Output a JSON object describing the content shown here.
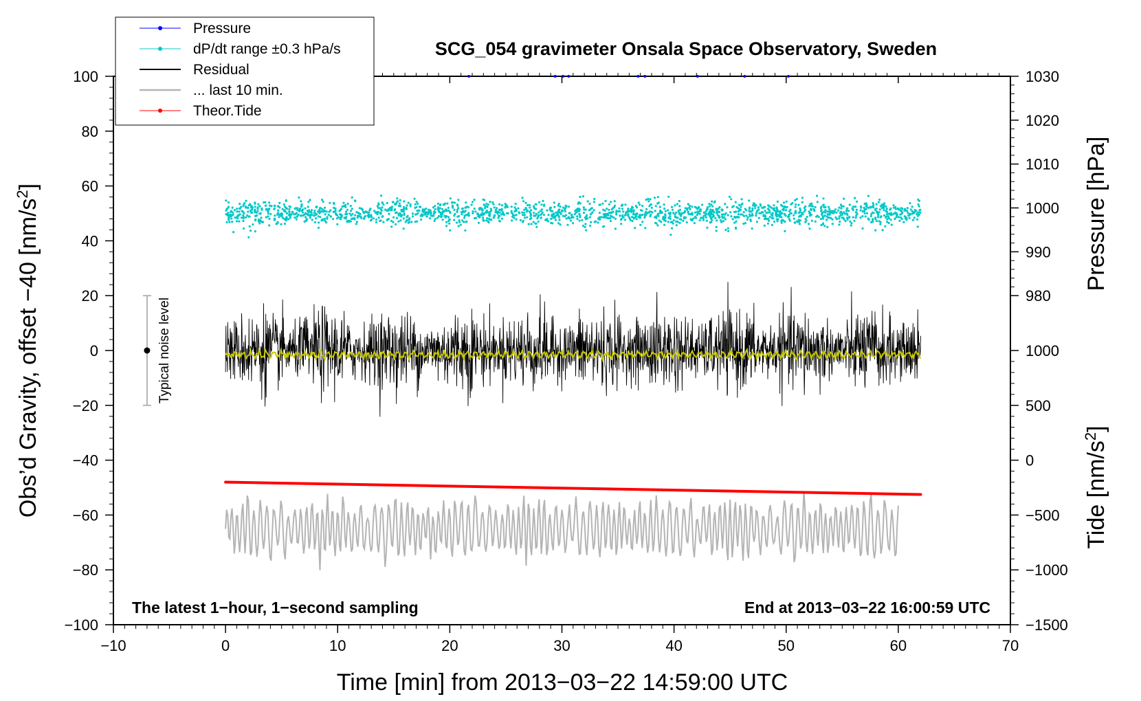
{
  "chart_data": {
    "type": "line",
    "title": "SCG_054 gravimeter Onsala Space Observatory, Sweden",
    "xlabel": "Time [min] from 2013−03−22 14:59:00 UTC",
    "ylabel_left_main": "Obs’d Gravity, offset −40 [nm/s",
    "ylabel_left_sup": "2",
    "ylabel_left_close": "]",
    "ylabel_right_pressure": "Pressure [hPa]",
    "ylabel_right_tide_main": "Tide [nm/s",
    "ylabel_right_tide_sup": "2",
    "ylabel_right_tide_close": "]",
    "xlim": [
      -10,
      70
    ],
    "ylim_left": [
      -100,
      100
    ],
    "x_ticks": [
      -10,
      0,
      10,
      20,
      30,
      40,
      50,
      60,
      70
    ],
    "x_tick_labels": [
      "−10",
      "0",
      "10",
      "20",
      "30",
      "40",
      "50",
      "60",
      "70"
    ],
    "y_ticks_left": [
      -100,
      -80,
      -60,
      -40,
      -20,
      0,
      20,
      40,
      60,
      80,
      100
    ],
    "y_tick_labels_left": [
      "−100",
      "−80",
      "−60",
      "−40",
      "−20",
      "0",
      "20",
      "40",
      "60",
      "80",
      "100"
    ],
    "pressure_ticks": [
      980,
      990,
      1000,
      1010,
      1020,
      1030
    ],
    "pressure_tick_labels": [
      "980",
      "990",
      "1000",
      "1010",
      "1020",
      "1030"
    ],
    "pressure_axis_map": {
      "value_at_left_100": 1030,
      "value_at_left_20": 980
    },
    "tide_ticks": [
      -1500,
      -1000,
      -500,
      0,
      500,
      1000
    ],
    "tide_tick_labels": [
      "−1500",
      "−1000",
      "−500",
      "0",
      "500",
      "1000"
    ],
    "tide_axis_map": {
      "value_at_left_minus100": -1500,
      "value_at_left_0": 1000
    },
    "legend": [
      {
        "label": "Pressure",
        "color": "#0000ff",
        "marker": "dot"
      },
      {
        "label": "dP/dt range ±0.3 hPa/s",
        "color": "#00c8c8",
        "marker": "dot"
      },
      {
        "label": "Residual",
        "color": "#000000",
        "marker": "line"
      },
      {
        "label": "... last 10 min.",
        "color": "#b4b4b4",
        "marker": "line"
      },
      {
        "label": "Theor.Tide",
        "color": "#ff0000",
        "marker": "dot"
      }
    ],
    "legend_position": "top-left",
    "series": [
      {
        "name": "Pressure",
        "color": "#0000ff",
        "x_range": [
          0,
          62
        ],
        "value_hPa": 1030,
        "description": "points at top edge of plot"
      },
      {
        "name": "dP/dt range ±0.3 hPa/s",
        "color": "#00c8c8",
        "x_range": [
          0,
          62
        ],
        "center": 50,
        "spread": [
          35,
          67
        ]
      },
      {
        "name": "Residual",
        "color": "#000000",
        "x_range": [
          0,
          62
        ],
        "center": 0,
        "spread": [
          -28,
          25
        ]
      },
      {
        "name": "Residual smoothed",
        "color": "#c8c800",
        "x_range": [
          0,
          62
        ],
        "center": -1.5
      },
      {
        "name": "... last 10 min.",
        "color": "#b4b4b4",
        "x_range": [
          0,
          60
        ],
        "center": -65,
        "spread": [
          -82,
          -42
        ]
      },
      {
        "name": "Theor.Tide",
        "color": "#ff0000",
        "x": [
          0,
          62
        ],
        "y": [
          -48,
          -52.5
        ]
      }
    ],
    "noise_bar": {
      "x": -7,
      "y_range": [
        -20,
        20
      ],
      "label": "Typical noise level"
    },
    "annotation_left": "The latest 1−hour, 1−second sampling",
    "annotation_right": "End at 2013−03−22 16:00:59 UTC",
    "colors": {
      "cyan": "#00c8c8",
      "black": "#000000",
      "yellow": "#c8c800",
      "gray": "#b4b4b4",
      "red": "#ff0000",
      "blue": "#0000ff"
    }
  }
}
